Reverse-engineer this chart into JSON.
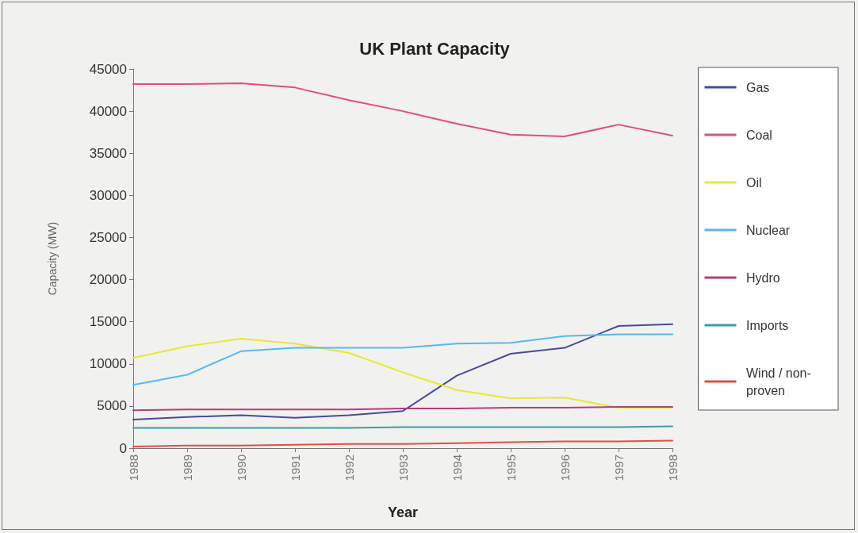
{
  "chart_data": {
    "type": "line",
    "title": "UK Plant Capacity",
    "xlabel": "Year",
    "ylabel": "Capacity (MW)",
    "categories": [
      "1988",
      "1989",
      "1990",
      "1991",
      "1992",
      "1993",
      "1994",
      "1995",
      "1996",
      "1997",
      "1998"
    ],
    "series": [
      {
        "name": "Gas",
        "color": "#4a4a9a",
        "values": [
          3400,
          3700,
          3900,
          3600,
          3900,
          4400,
          8600,
          11200,
          11900,
          14500,
          14700
        ]
      },
      {
        "name": "Coal",
        "color": "#e0507a",
        "values": [
          43200,
          43200,
          43300,
          42800,
          41300,
          40000,
          38500,
          37200,
          37000,
          38400,
          37100
        ]
      },
      {
        "name": "Oil",
        "color": "#e8e830",
        "values": [
          10700,
          12100,
          13000,
          12400,
          11300,
          9000,
          6900,
          5900,
          6000,
          4800,
          4800
        ]
      },
      {
        "name": "Nuclear",
        "color": "#55b8f0",
        "values": [
          7500,
          8700,
          11500,
          11900,
          11900,
          11900,
          12400,
          12500,
          13300,
          13500,
          13500
        ]
      },
      {
        "name": "Hydro",
        "color": "#b0407a",
        "values": [
          4500,
          4600,
          4600,
          4600,
          4600,
          4700,
          4700,
          4800,
          4800,
          4900,
          4900
        ]
      },
      {
        "name": "Imports",
        "color": "#3aa0a0",
        "values": [
          2400,
          2400,
          2400,
          2400,
          2400,
          2500,
          2500,
          2500,
          2500,
          2500,
          2600
        ]
      },
      {
        "name": "Wind / non-proven",
        "color": "#e05040",
        "values": [
          200,
          300,
          300,
          400,
          500,
          500,
          600,
          700,
          800,
          800,
          900
        ]
      }
    ],
    "ylim": [
      0,
      45000
    ],
    "yticks": [
      0,
      5000,
      10000,
      15000,
      20000,
      25000,
      30000,
      35000,
      40000,
      45000
    ],
    "grid": false,
    "legend": "right",
    "marker": "none",
    "line_style": "solid"
  }
}
